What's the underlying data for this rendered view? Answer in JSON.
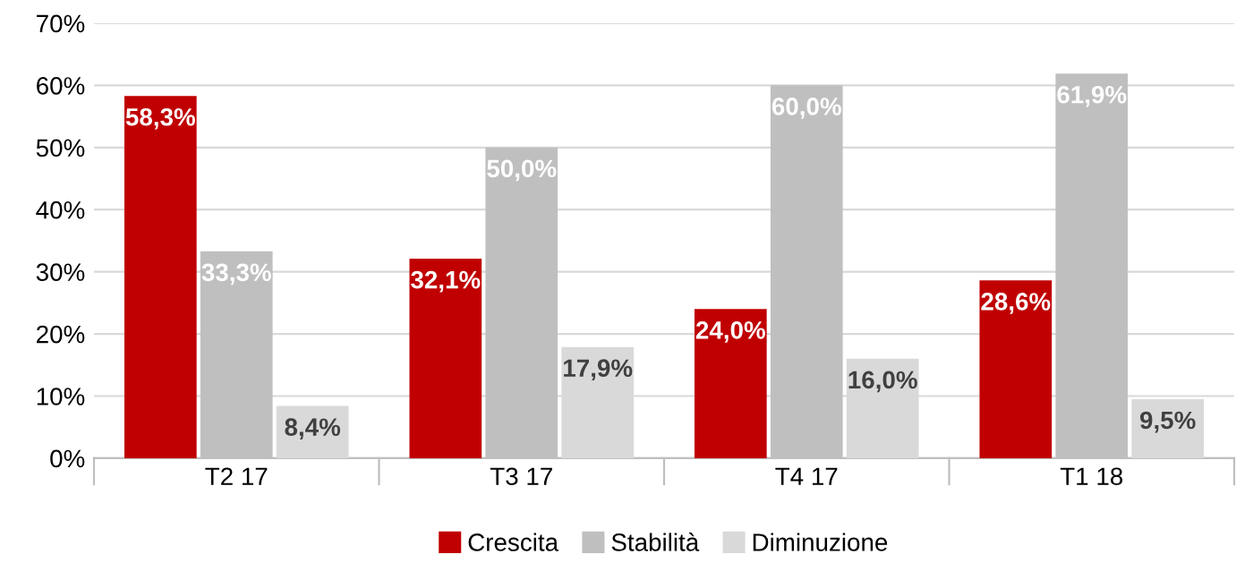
{
  "chart_data": {
    "type": "bar",
    "categories": [
      "T2 17",
      "T3 17",
      "T4 17",
      "T1 18"
    ],
    "series": [
      {
        "name": "Crescita",
        "color": "#c00000",
        "values": [
          58.3,
          32.1,
          24.0,
          28.6
        ],
        "value_labels": [
          "58,3%",
          "32,1%",
          "24,0%",
          "28,6%"
        ]
      },
      {
        "name": "Stabilità",
        "color": "#bfbfbf",
        "values": [
          33.3,
          50.0,
          60.0,
          61.9
        ],
        "value_labels": [
          "33,3%",
          "50,0%",
          "60,0%",
          "61,9%"
        ]
      },
      {
        "name": "Diminuzione",
        "color": "#d9d9d9",
        "values": [
          8.4,
          17.9,
          16.0,
          9.5
        ],
        "value_labels": [
          "8,4%",
          "17,9%",
          "16,0%",
          "9,5%"
        ]
      }
    ],
    "ylim": [
      0,
      70
    ],
    "yticks": [
      {
        "value": 0,
        "label": "0%"
      },
      {
        "value": 10,
        "label": "10%"
      },
      {
        "value": 20,
        "label": "20%"
      },
      {
        "value": 30,
        "label": "30%"
      },
      {
        "value": 40,
        "label": "40%"
      },
      {
        "value": 50,
        "label": "50%"
      },
      {
        "value": 60,
        "label": "60%"
      },
      {
        "value": 70,
        "label": "70%"
      }
    ],
    "grid": "y",
    "legend": "bottom"
  }
}
